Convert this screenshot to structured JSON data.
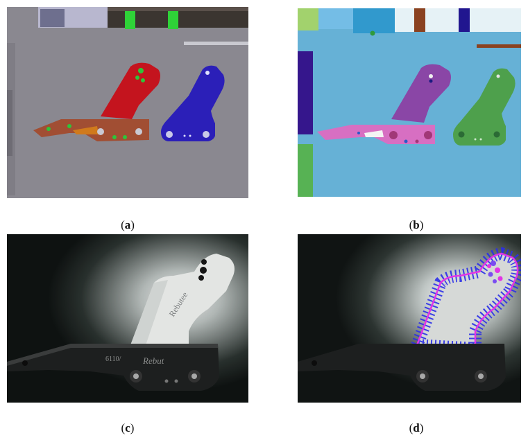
{
  "figure": {
    "panels": [
      {
        "id": "a",
        "caption_open": "(",
        "letter": "a",
        "caption_close": ")"
      },
      {
        "id": "b",
        "caption_open": "(",
        "letter": "b",
        "caption_close": ")"
      },
      {
        "id": "c",
        "caption_open": "(",
        "letter": "c",
        "caption_close": ")"
      },
      {
        "id": "d",
        "caption_open": "(",
        "letter": "d",
        "caption_close": ")"
      }
    ],
    "handwriting": {
      "bracket_text": "Rebut",
      "part_code": "6110/",
      "plate_text": "Rebutee"
    },
    "colors": {
      "cad_background": "#8f8d95",
      "red_part": "#c4141e",
      "blue_part": "#2b1fb8",
      "bracket_brown": "#a14e33",
      "seg_background": "#66b1d6",
      "seg_purple": "#8a46a6",
      "seg_pink": "#d76fc2",
      "seg_green": "#4ea04c",
      "overlay_blue": "#2a2ee8",
      "overlay_magenta": "#e234e6"
    }
  }
}
